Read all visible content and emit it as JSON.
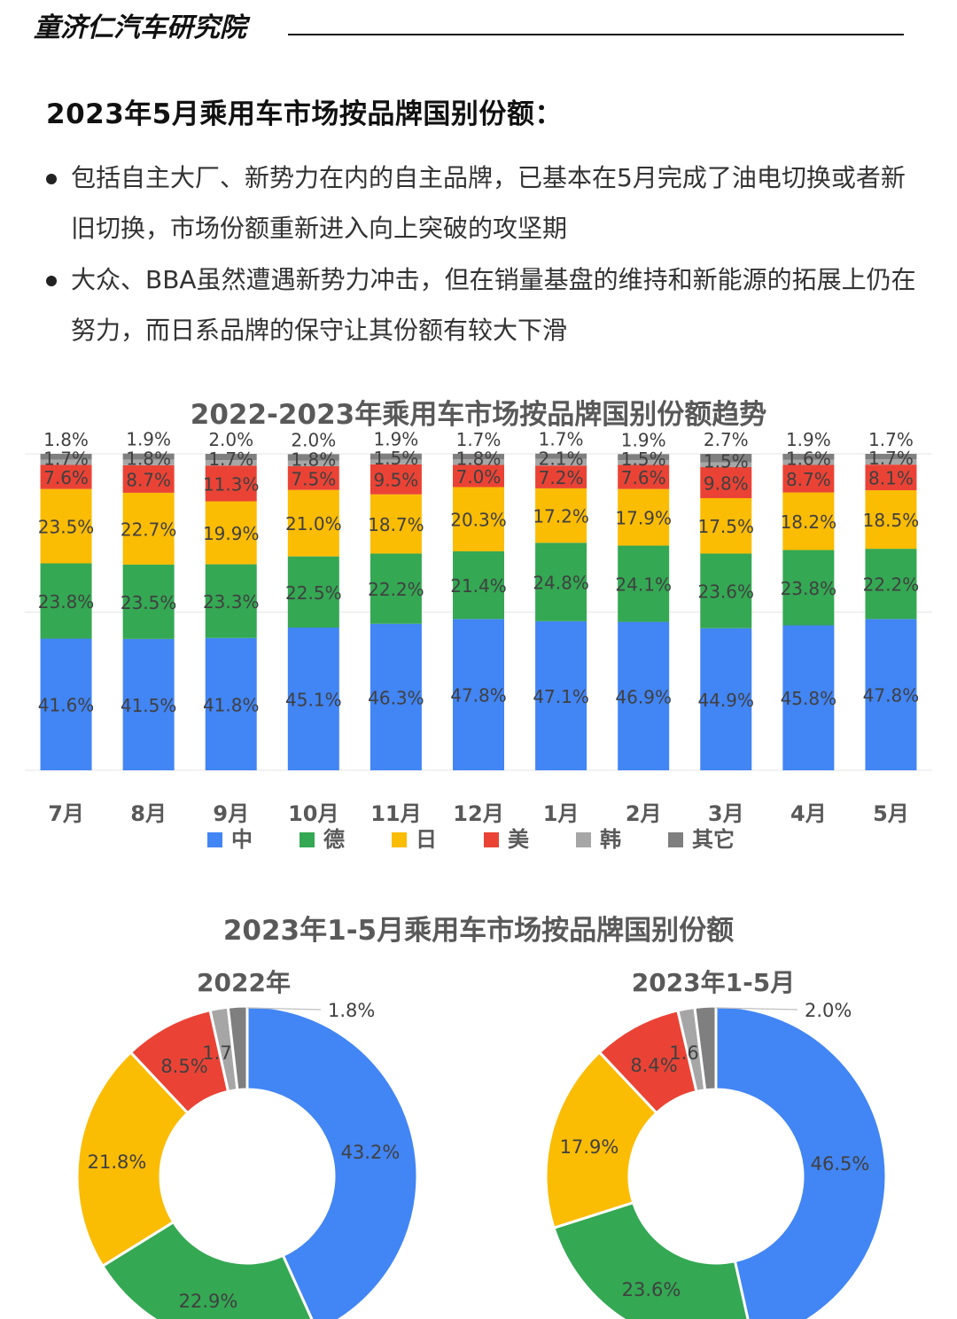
{
  "header": {
    "brand": "童济仁汽车研究院",
    "headline": "2023年5月乘用车市场按品牌国别份额："
  },
  "bullets": [
    "包括自主大厂、新势力在内的自主品牌，已基本在5月完成了油电切换或者新旧切换，市场份额重新进入向上突破的攻坚期",
    "大众、BBA虽然遭遇新势力冲击，但在销量基盘的维持和新能源的拓展上仍在努力，而日系品牌的保守让其份额有较大下滑"
  ],
  "colors": {
    "中": "#4285f4",
    "德": "#34a853",
    "日": "#fbbc04",
    "美": "#ea4335",
    "韩": "#a6a6a6",
    "其它": "#7f7f7f"
  },
  "chart_data": [
    {
      "type": "bar",
      "stacked": true,
      "title": "2022-2023年乘用车市场按品牌国别份额趋势",
      "categories": [
        "7月",
        "8月",
        "9月",
        "10月",
        "11月",
        "12月",
        "1月",
        "2月",
        "3月",
        "4月",
        "5月"
      ],
      "series": [
        {
          "name": "中",
          "values": [
            41.6,
            41.5,
            41.8,
            45.1,
            46.3,
            47.8,
            47.1,
            46.9,
            44.9,
            45.8,
            47.8
          ]
        },
        {
          "name": "德",
          "values": [
            23.8,
            23.5,
            23.3,
            22.5,
            22.2,
            21.4,
            24.8,
            24.1,
            23.6,
            23.8,
            22.2
          ]
        },
        {
          "name": "日",
          "values": [
            23.5,
            22.7,
            19.9,
            21.0,
            18.7,
            20.3,
            17.2,
            17.9,
            17.5,
            18.2,
            18.5
          ]
        },
        {
          "name": "美",
          "values": [
            7.6,
            8.7,
            11.3,
            7.5,
            9.5,
            7.0,
            7.2,
            7.6,
            9.8,
            8.7,
            8.1
          ]
        },
        {
          "name": "韩",
          "values": [
            1.7,
            1.8,
            1.7,
            1.8,
            1.5,
            1.8,
            2.1,
            1.5,
            1.5,
            1.6,
            1.7
          ]
        },
        {
          "name": "其它",
          "values": [
            1.8,
            1.9,
            2.0,
            2.0,
            1.9,
            1.7,
            1.7,
            1.9,
            2.7,
            1.9,
            1.7
          ]
        }
      ],
      "value_suffix": "%",
      "ylim": [
        0,
        100
      ],
      "grid": true,
      "legend": "bottom"
    },
    {
      "type": "pie",
      "donut": true,
      "title": "2023年1-5月乘用车市场按品牌国别份额",
      "subtitle": "2022年",
      "categories": [
        "中",
        "德",
        "日",
        "美",
        "韩",
        "其它"
      ],
      "values": [
        43.2,
        22.9,
        21.8,
        8.5,
        1.7,
        1.8
      ],
      "value_suffix": "%"
    },
    {
      "type": "pie",
      "donut": true,
      "subtitle": "2023年1-5月",
      "categories": [
        "中",
        "德",
        "日",
        "美",
        "韩",
        "其它"
      ],
      "values": [
        46.5,
        23.6,
        17.9,
        8.4,
        1.6,
        2.0
      ],
      "value_suffix": "%"
    }
  ]
}
